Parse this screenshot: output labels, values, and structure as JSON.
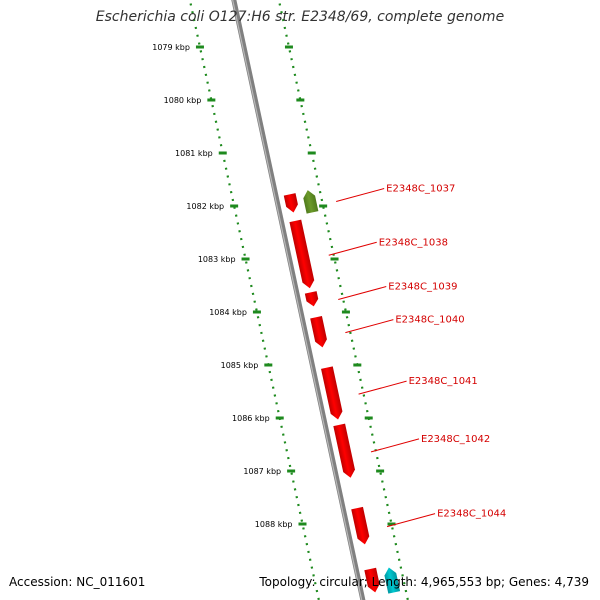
{
  "title": "Escherichia coli O127:H6 str. E2348/69, complete genome",
  "footer": {
    "accession": "Accession: NC_011601",
    "stats": "Topology: circular; Length: 4,965,553 bp; Genes: 4,739"
  },
  "colors": {
    "ruler": "#1e8a1e",
    "backbone": "#808080",
    "gene": "#ff0000",
    "gene_alt": "#6b9a2a",
    "gene_cyan": "#00c8d0",
    "label": "#d40000",
    "leader": "#e00000"
  },
  "scale": {
    "unit": "kbp",
    "ticks": [
      "1079 kbp",
      "1080 kbp",
      "1081 kbp",
      "1082 kbp",
      "1083 kbp",
      "1084 kbp",
      "1085 kbp",
      "1086 kbp",
      "1087 kbp",
      "1088 kbp"
    ]
  },
  "genes": [
    {
      "id": "g-1037a",
      "start_kbp": 1081.78,
      "end_kbp": 1082.13,
      "strand": "minus",
      "color": "gene",
      "label": ""
    },
    {
      "id": "g-1037",
      "start_kbp": 1081.7,
      "end_kbp": 1082.13,
      "strand": "plus",
      "color": "gene_alt",
      "label": "E2348C_1037"
    },
    {
      "id": "g-1038",
      "start_kbp": 1082.28,
      "end_kbp": 1083.58,
      "strand": "minus",
      "color": "gene",
      "label": "E2348C_1038"
    },
    {
      "id": "g-1039",
      "start_kbp": 1083.63,
      "end_kbp": 1083.9,
      "strand": "minus",
      "color": "gene",
      "label": "E2348C_1039"
    },
    {
      "id": "g-1040",
      "start_kbp": 1084.1,
      "end_kbp": 1084.68,
      "strand": "minus",
      "color": "gene",
      "label": "E2348C_1040"
    },
    {
      "id": "g-1041",
      "start_kbp": 1085.05,
      "end_kbp": 1086.05,
      "strand": "minus",
      "color": "gene",
      "label": "E2348C_1041"
    },
    {
      "id": "g-1042",
      "start_kbp": 1086.13,
      "end_kbp": 1087.15,
      "strand": "minus",
      "color": "gene",
      "label": "E2348C_1042"
    },
    {
      "id": "g-1044",
      "start_kbp": 1087.7,
      "end_kbp": 1088.4,
      "strand": "minus",
      "color": "gene",
      "label": "E2348C_1044"
    },
    {
      "id": "g-next-red",
      "start_kbp": 1088.85,
      "end_kbp": 1089.3,
      "strand": "minus",
      "color": "gene",
      "label": ""
    },
    {
      "id": "g-next-cyan",
      "start_kbp": 1088.82,
      "end_kbp": 1089.3,
      "strand": "plus",
      "color": "gene_cyan",
      "label": ""
    }
  ]
}
